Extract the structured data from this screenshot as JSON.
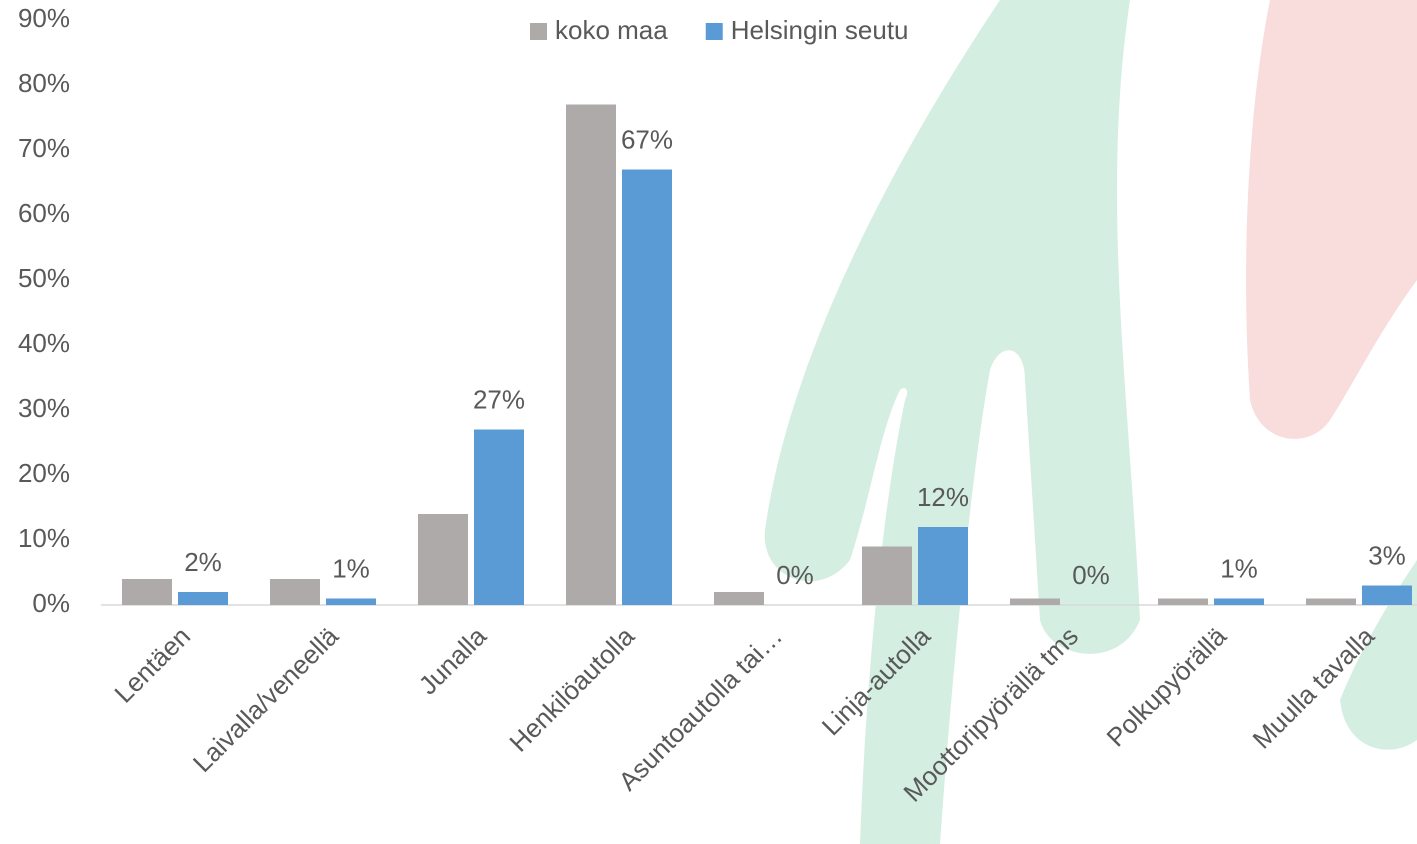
{
  "chart_data": {
    "type": "bar",
    "categories": [
      "Lentäen",
      "Laivalla/veneellä",
      "Junalla",
      "Henkilöautolla",
      "Asuntoautolla tai…",
      "Linja-autolla",
      "Moottoripyörällä tms",
      "Polkupyörällä",
      "Muulla tavalla"
    ],
    "series": [
      {
        "name": "koko maa",
        "color": "#aeaaaa",
        "values": [
          4,
          4,
          14,
          77,
          2,
          9,
          1,
          1,
          1
        ]
      },
      {
        "name": "Helsingin seutu",
        "color": "#5b9bd5",
        "values": [
          2,
          1,
          27,
          67,
          0,
          12,
          0,
          1,
          3
        ],
        "value_labels": [
          "2%",
          "1%",
          "27%",
          "67%",
          "0%",
          "12%",
          "0%",
          "1%",
          "3%"
        ]
      }
    ],
    "ylim": [
      0,
      90
    ],
    "yticks": [
      {
        "value": 0,
        "label": "0%"
      },
      {
        "value": 10,
        "label": "10%"
      },
      {
        "value": 20,
        "label": "20%"
      },
      {
        "value": 30,
        "label": "30%"
      },
      {
        "value": 40,
        "label": "40%"
      },
      {
        "value": 50,
        "label": "50%"
      },
      {
        "value": 60,
        "label": "60%"
      },
      {
        "value": 70,
        "label": "70%"
      },
      {
        "value": 80,
        "label": "80%"
      },
      {
        "value": 90,
        "label": "90%"
      }
    ],
    "legend": "top"
  }
}
